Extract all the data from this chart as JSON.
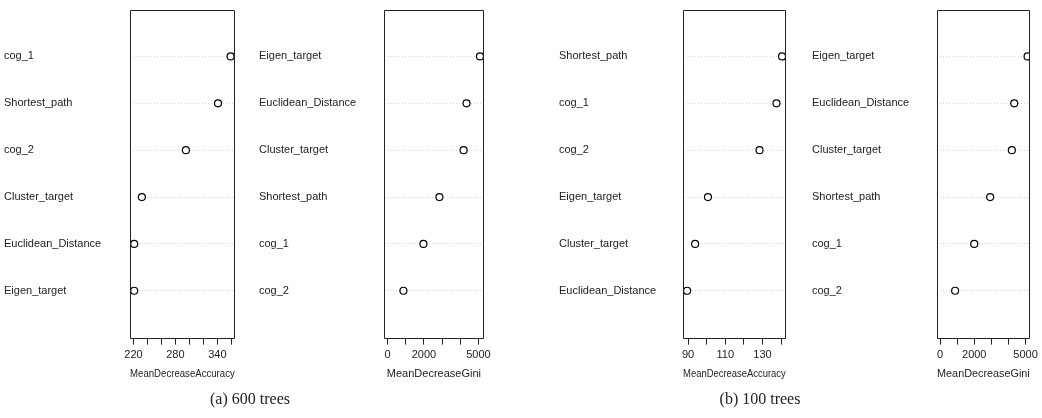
{
  "chart_data": [
    {
      "type": "scatter",
      "orientation": "horizontal",
      "categories": [
        "cog_1",
        "Shortest_path",
        "cog_2",
        "Cluster_target",
        "Euclidean_Distance",
        "Eigen_target"
      ],
      "values": [
        359,
        341,
        295,
        232,
        221,
        221
      ],
      "color": "#000000",
      "marker": "circle",
      "grid": "y",
      "xlabel": "MeanDecreaseAccuracy",
      "xlim": [
        215,
        365
      ],
      "xticks": [
        220,
        {
          "value": 240,
          "label": null
        },
        {
          "value": 260,
          "label": null
        },
        280,
        {
          "value": 300,
          "label": null
        },
        {
          "value": 320,
          "label": null
        },
        340,
        {
          "value": 360,
          "label": null
        }
      ],
      "annotations": [
        "(a) 600 trees"
      ]
    },
    {
      "type": "scatter",
      "orientation": "horizontal",
      "categories": [
        "Eigen_target",
        "Euclidean_Distance",
        "Cluster_target",
        "Shortest_path",
        "cog_1",
        "cog_2"
      ],
      "values": [
        5080,
        4340,
        4180,
        2850,
        1970,
        870
      ],
      "color": "#000000",
      "marker": "circle",
      "grid": "y",
      "xlabel": "MeanDecreaseGini",
      "xlim": [
        -200,
        5290
      ],
      "xticks": [
        0,
        {
          "value": 1000,
          "label": null
        },
        2000,
        {
          "value": 3000,
          "label": null
        },
        {
          "value": 4000,
          "label": null
        },
        5000
      ]
    },
    {
      "type": "scatter",
      "orientation": "horizontal",
      "categories": [
        "Shortest_path",
        "cog_1",
        "cog_2",
        "Eigen_target",
        "Cluster_target",
        "Euclidean_Distance"
      ],
      "values": [
        140.5,
        137.5,
        128.4,
        100.7,
        93.8,
        89.5
      ],
      "color": "#000000",
      "marker": "circle",
      "grid": "y",
      "xlabel": "MeanDecreaseAccuracy",
      "xlim": [
        87.3,
        142.5
      ],
      "xticks": [
        90,
        {
          "value": 100,
          "label": null
        },
        110,
        {
          "value": 120,
          "label": null
        },
        130,
        {
          "value": 140,
          "label": null
        }
      ],
      "annotations": [
        "(b) 100 trees"
      ]
    },
    {
      "type": "scatter",
      "orientation": "horizontal",
      "categories": [
        "Eigen_target",
        "Euclidean_Distance",
        "Cluster_target",
        "Shortest_path",
        "cog_1",
        "cog_2"
      ],
      "values": [
        5120,
        4340,
        4200,
        2930,
        2000,
        880
      ],
      "color": "#000000",
      "marker": "circle",
      "grid": "y",
      "xlabel": "MeanDecreaseGini",
      "xlim": [
        -180,
        5250
      ],
      "xticks": [
        0,
        {
          "value": 1000,
          "label": null
        },
        2000,
        {
          "value": 3000,
          "label": null
        },
        {
          "value": 4000,
          "label": null
        },
        5000
      ]
    }
  ]
}
